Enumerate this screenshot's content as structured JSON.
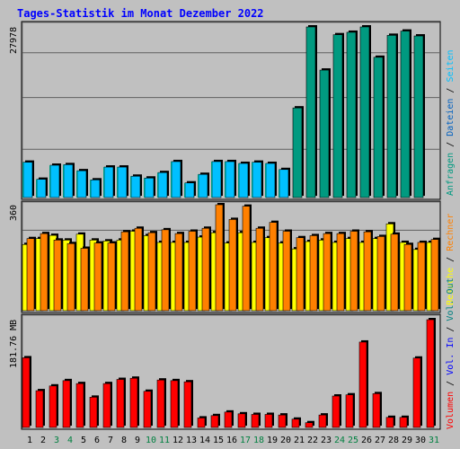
{
  "title": "Tages-Statistik im Monat Dezember 2022",
  "colors": {
    "background": "#c0c0c0",
    "title": "#0000ff",
    "gridline": "#606060",
    "requests": "#009a80",
    "files": "#0060c0",
    "pages": "#00c0ff",
    "visits": "#ffff00",
    "sites": "#ff8000",
    "kbytes_in": "#0000ff",
    "kbytes_out": "#008080",
    "volume": "#ff0000",
    "day_weekday": "#000000",
    "day_weekend": "#008040"
  },
  "chart_data": [
    {
      "type": "bar",
      "panel": "hits",
      "ylabel": "27978",
      "ymax": 27978,
      "legend": [
        {
          "text": "Anfragen",
          "color": "#009a80"
        },
        {
          "text": "Dateien",
          "color": "#0060c0"
        },
        {
          "text": "Seiten",
          "color": "#00c0ff"
        }
      ],
      "categories": [
        "1",
        "2",
        "3",
        "4",
        "5",
        "6",
        "7",
        "8",
        "9",
        "10",
        "11",
        "12",
        "13",
        "14",
        "15",
        "16",
        "17",
        "18",
        "19",
        "20",
        "21",
        "22",
        "23",
        "24",
        "25",
        "26",
        "27",
        "28",
        "29",
        "30",
        "31"
      ],
      "series": [
        {
          "name": "Anfragen",
          "values": [
            5800,
            3000,
            5300,
            5400,
            4400,
            2900,
            5000,
            5000,
            3500,
            3200,
            4100,
            5900,
            2400,
            3800,
            5900,
            5900,
            5600,
            5800,
            5600,
            4600,
            14700,
            27978,
            20900,
            26700,
            27100,
            27978,
            23000,
            26600,
            27300,
            26500,
            0
          ]
        },
        {
          "name": "Dateien",
          "values": [
            5800,
            3000,
            5300,
            5400,
            4400,
            2900,
            5000,
            5000,
            3500,
            3200,
            4100,
            5900,
            2400,
            3800,
            5900,
            5900,
            5600,
            5800,
            5600,
            4600,
            0,
            0,
            0,
            0,
            0,
            0,
            0,
            0,
            0,
            0,
            0
          ]
        },
        {
          "name": "Seiten",
          "values": [
            5800,
            3000,
            5300,
            5400,
            4400,
            2900,
            5000,
            5000,
            3500,
            3200,
            4100,
            5900,
            2400,
            3800,
            5900,
            5900,
            5600,
            5800,
            5600,
            4600,
            0,
            0,
            0,
            0,
            0,
            0,
            0,
            0,
            0,
            0,
            0
          ]
        }
      ]
    },
    {
      "type": "bar",
      "panel": "visits",
      "ylabel": "360",
      "ymax": 360,
      "legend": [
        {
          "text": "Besuche",
          "color": "#ffff00"
        },
        {
          "text": "Rechner",
          "color": "#ff8000"
        }
      ],
      "categories": [
        "1",
        "2",
        "3",
        "4",
        "5",
        "6",
        "7",
        "8",
        "9",
        "10",
        "11",
        "12",
        "13",
        "14",
        "15",
        "16",
        "17",
        "18",
        "19",
        "20",
        "21",
        "22",
        "23",
        "24",
        "25",
        "26",
        "27",
        "28",
        "29",
        "30",
        "31"
      ],
      "series": [
        {
          "name": "Besuche",
          "values": [
            225,
            245,
            256,
            240,
            260,
            240,
            237,
            240,
            270,
            255,
            232,
            232,
            232,
            250,
            265,
            230,
            265,
            232,
            248,
            230,
            210,
            235,
            240,
            232,
            245,
            232,
            245,
            295,
            232,
            208,
            232
          ]
        },
        {
          "name": "Rechner",
          "values": [
            245,
            262,
            240,
            228,
            212,
            230,
            230,
            268,
            280,
            265,
            275,
            262,
            270,
            280,
            360,
            310,
            355,
            280,
            300,
            270,
            248,
            255,
            262,
            262,
            270,
            268,
            252,
            260,
            225,
            232,
            242
          ]
        }
      ]
    },
    {
      "type": "bar",
      "panel": "volume",
      "ylabel": "181.76 MB",
      "ymax": 181.76,
      "legend": [
        {
          "text": "Volumen",
          "color": "#ff0000"
        },
        {
          "text": "Vol. In",
          "color": "#0000ff"
        },
        {
          "text": "Vol. Out",
          "color": "#008080"
        }
      ],
      "categories": [
        "1",
        "2",
        "3",
        "4",
        "5",
        "6",
        "7",
        "8",
        "9",
        "10",
        "11",
        "12",
        "13",
        "14",
        "15",
        "16",
        "17",
        "18",
        "19",
        "20",
        "21",
        "22",
        "23",
        "24",
        "25",
        "26",
        "27",
        "28",
        "29",
        "30",
        "31"
      ],
      "series": [
        {
          "name": "Volumen",
          "values": [
            117.5,
            62,
            70,
            79,
            74,
            51,
            74,
            81,
            83,
            61,
            80,
            79,
            77,
            16,
            20,
            26,
            23,
            22,
            22,
            21,
            14,
            8,
            21,
            53,
            55,
            144,
            57,
            17,
            17,
            117,
            181.76
          ]
        }
      ]
    }
  ],
  "x_axis": {
    "labels": [
      "1",
      "2",
      "3",
      "4",
      "5",
      "6",
      "7",
      "8",
      "9",
      "10",
      "11",
      "12",
      "13",
      "14",
      "15",
      "16",
      "17",
      "18",
      "19",
      "20",
      "21",
      "22",
      "23",
      "24",
      "25",
      "26",
      "27",
      "28",
      "29",
      "30",
      "31"
    ],
    "weekend": [
      3,
      4,
      10,
      11,
      17,
      18,
      24,
      25,
      31
    ]
  }
}
